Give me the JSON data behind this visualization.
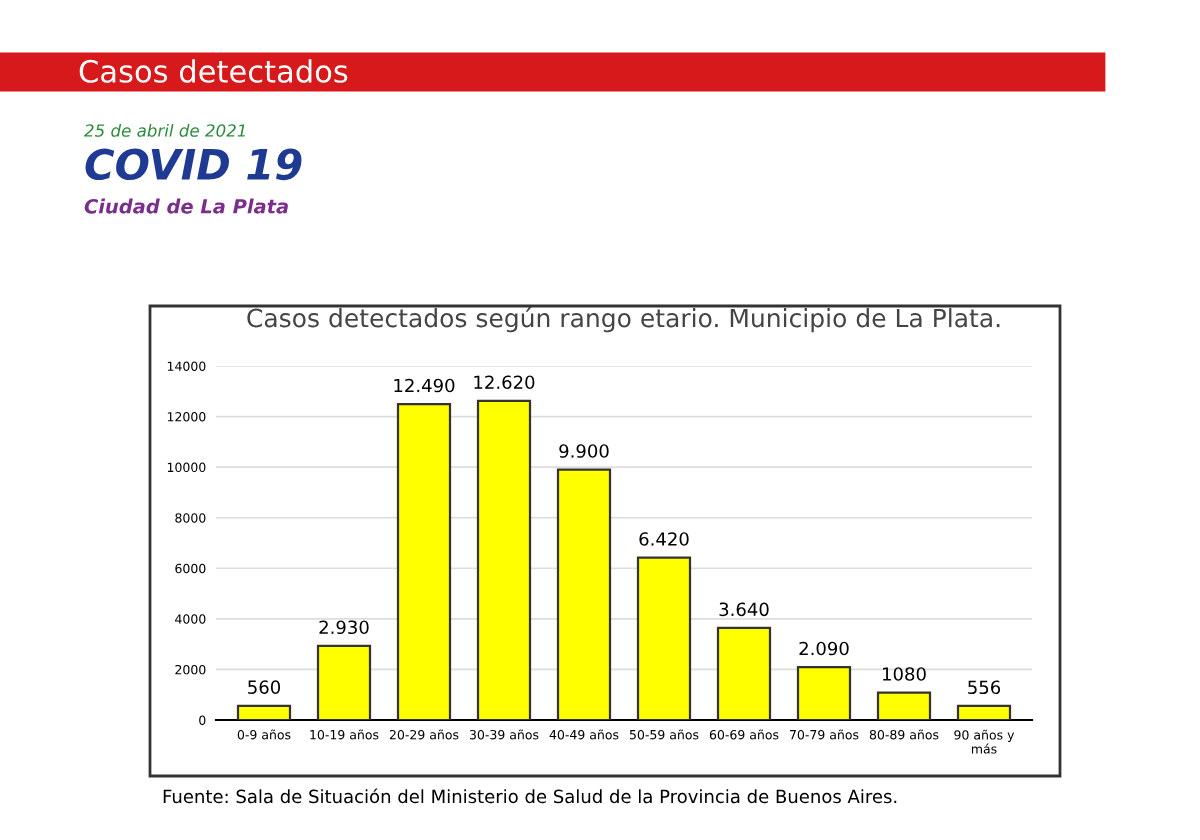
{
  "chart_data": {
    "type": "bar",
    "title": "Casos detectados según rango etario. Municipio de La Plata.",
    "categories": [
      "0-9 años",
      "10-19 años",
      "20-29 años",
      "30-39 años",
      "40-49 años",
      "50-59 años",
      "60-69 años",
      "70-79 años",
      "80-89 años",
      "90 años y\nmás"
    ],
    "values": [
      560,
      2930,
      12490,
      12620,
      9900,
      6420,
      3640,
      2090,
      1080,
      556
    ],
    "value_labels": [
      "560",
      "2.930",
      "12.490",
      "12.620",
      "9.900",
      "6.420",
      "3.640",
      "2.090",
      "1080",
      "556"
    ],
    "color": "#ffff00",
    "ylim": [
      0,
      14000
    ],
    "yticks": [
      0,
      2000,
      4000,
      6000,
      8000,
      10000,
      12000,
      14000
    ],
    "grid": "y",
    "annotations": [
      "Casos detectados",
      "25 de abril de 2021",
      "COVID 19",
      "Ciudad de La Plata",
      "Fuente: Sala de Situación del Ministerio de Salud de la Provincia de Buenos Aires."
    ]
  }
}
